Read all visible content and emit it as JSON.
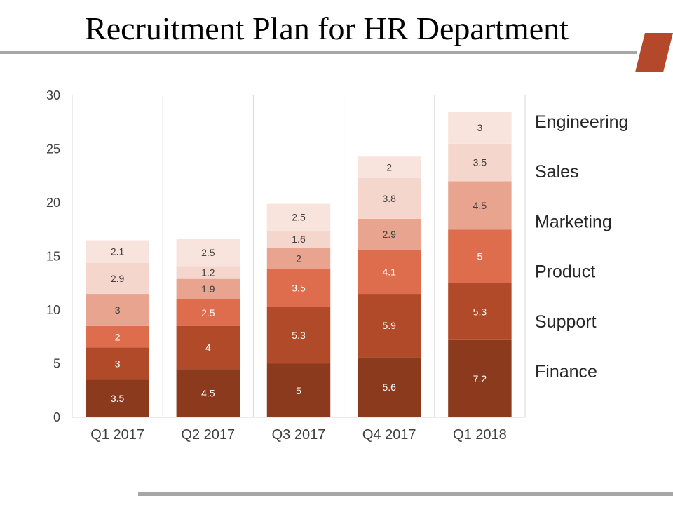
{
  "title": "Recruitment Plan for HR Department",
  "colors": {
    "rule": "#a6a6a6",
    "accent": "#b3492a",
    "series": [
      "#8b3a1e",
      "#b14a28",
      "#dd6d4c",
      "#e8a48e",
      "#f5d6cc",
      "#f8e3dd"
    ]
  },
  "chart_data": {
    "type": "bar",
    "stacked": true,
    "categories": [
      "Q1 2017",
      "Q2 2017",
      "Q3 2017",
      "Q4 2017",
      "Q1 2018"
    ],
    "series": [
      {
        "name": "Finance",
        "values": [
          3.5,
          4.5,
          5,
          5.6,
          7.2
        ]
      },
      {
        "name": "Support",
        "values": [
          3,
          4,
          5.3,
          5.9,
          5.3
        ]
      },
      {
        "name": "Product",
        "values": [
          2,
          2.5,
          3.5,
          4.1,
          5
        ]
      },
      {
        "name": "Marketing",
        "values": [
          3,
          1.9,
          2,
          2.9,
          4.5
        ]
      },
      {
        "name": "Sales",
        "values": [
          2.9,
          1.2,
          1.6,
          3.8,
          3.5
        ]
      },
      {
        "name": "Engineering",
        "values": [
          2.1,
          2.5,
          2.5,
          2,
          3
        ]
      }
    ],
    "ylim": [
      0,
      30
    ],
    "yticks": [
      0,
      5,
      10,
      15,
      20,
      25,
      30
    ],
    "grid": "vertical category separators",
    "legend_position": "right",
    "xlabel": "",
    "ylabel": ""
  }
}
